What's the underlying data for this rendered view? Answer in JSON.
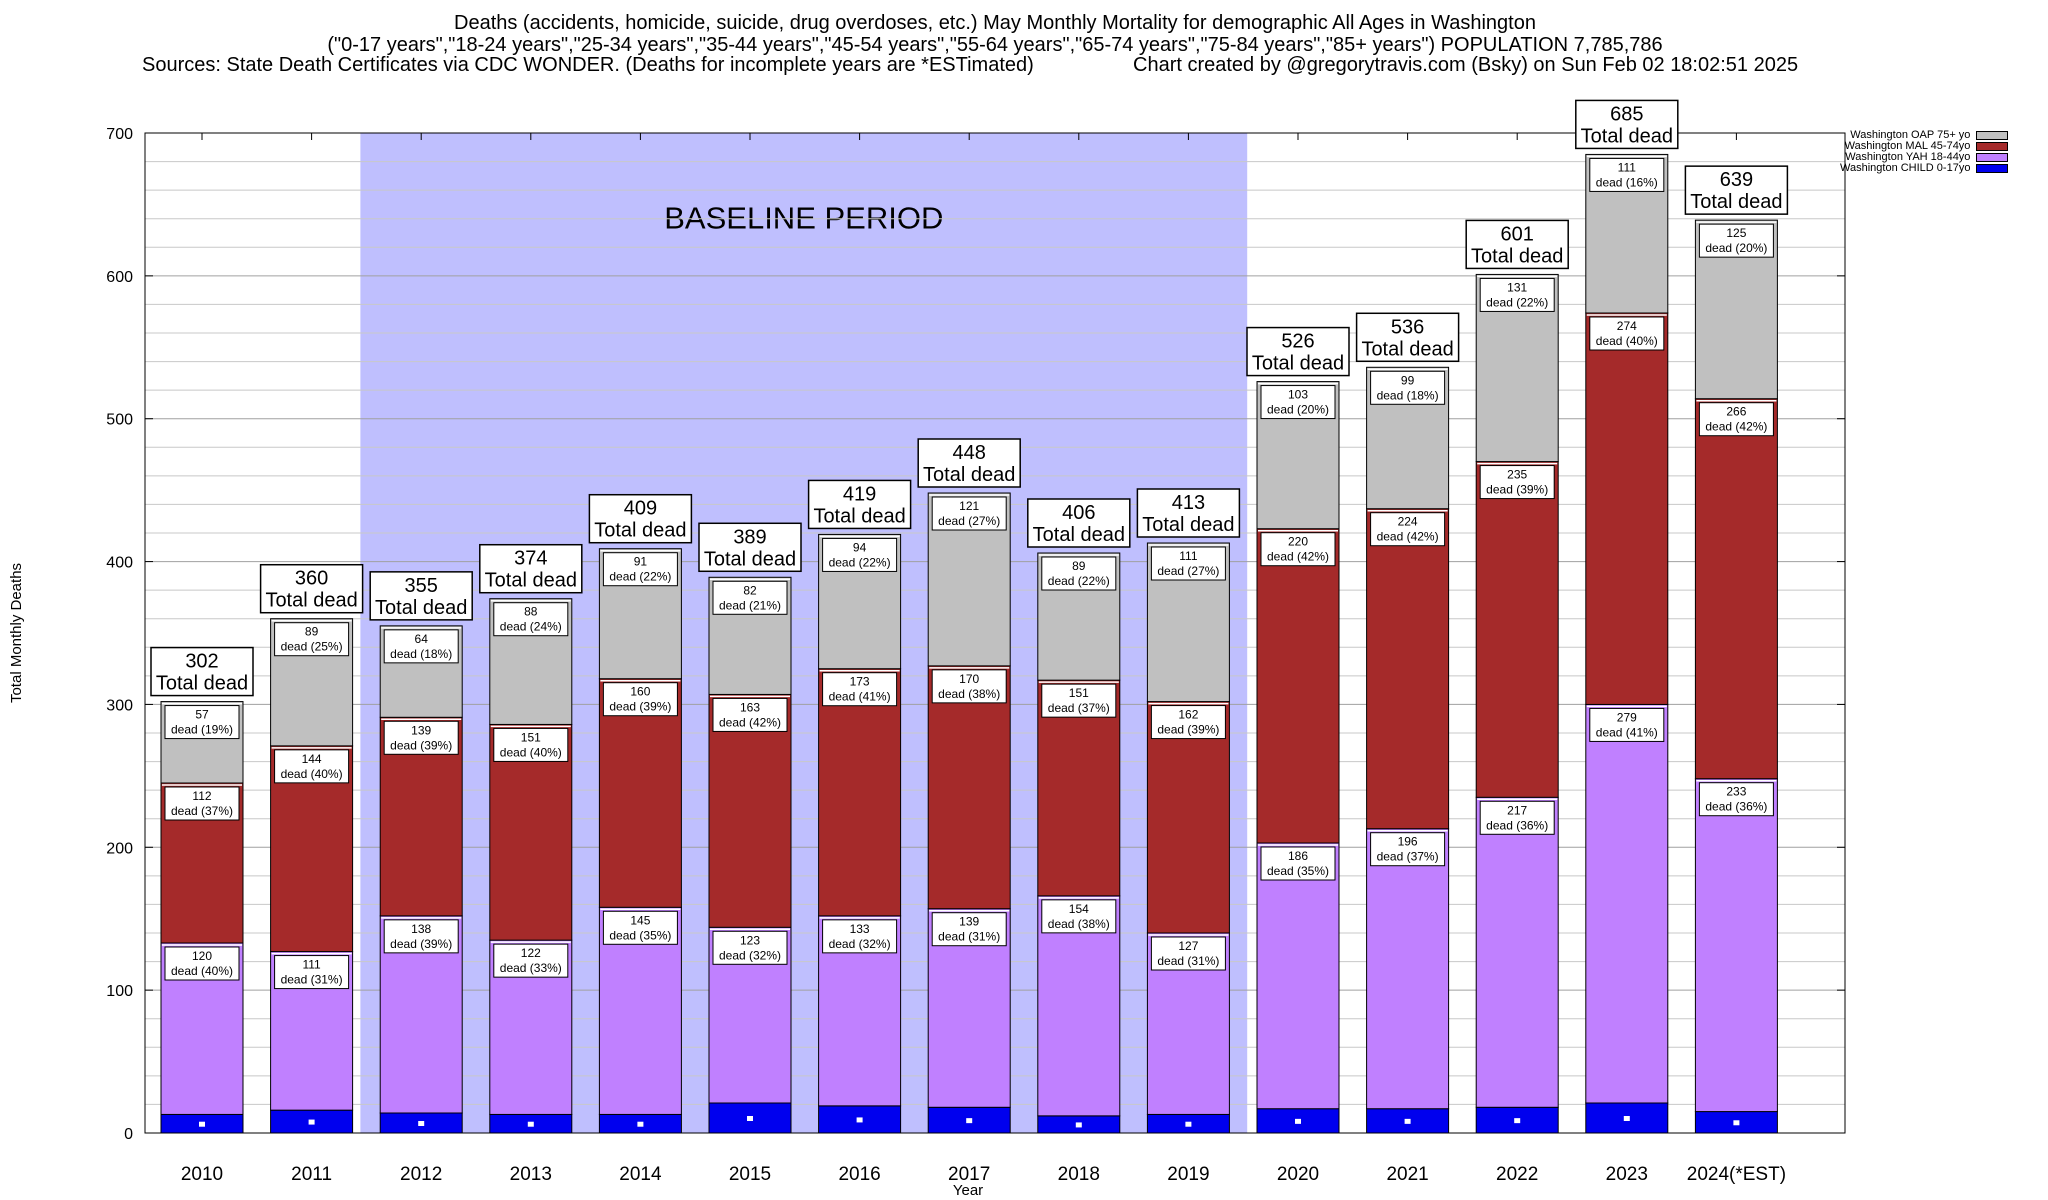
{
  "title": {
    "line1": "Deaths (accidents, homicide, suicide, drug overdoses, etc.) May Monthly Mortality for demographic All Ages in Washington",
    "line2": "(\"0-17 years\",\"18-24 years\",\"25-34 years\",\"35-44 years\",\"45-54 years\",\"55-64 years\",\"65-74 years\",\"75-84 years\",\"85+ years\") POPULATION 7,785,786",
    "sources": "Sources: State Death Certificates via CDC WONDER. (Deaths for incomplete years are *ESTimated)",
    "credit": "Chart created by @gregorytravis.com (Bsky) on Sun Feb 02 18:02:51 2025"
  },
  "chart_data": {
    "type": "bar",
    "stacked": true,
    "xlabel": "Year",
    "ylabel": "Total Monthly Deaths",
    "ylim": [
      0,
      700
    ],
    "yticks": [
      0,
      100,
      200,
      300,
      400,
      500,
      600,
      700
    ],
    "grid": true,
    "legend_position": "top-right",
    "categories": [
      "2010",
      "2011",
      "2012",
      "2013",
      "2014",
      "2015",
      "2016",
      "2017",
      "2018",
      "2019",
      "2020",
      "2021",
      "2022",
      "2023",
      "2024(*EST)"
    ],
    "totals": [
      302,
      360,
      355,
      374,
      409,
      389,
      419,
      448,
      406,
      413,
      526,
      536,
      601,
      685,
      639
    ],
    "total_suffix": "Total dead",
    "segment_label_prefix": "dead",
    "baseline": {
      "label": "BASELINE PERIOD",
      "start": "2012",
      "end": "2019",
      "color": "#bfbffe"
    },
    "series": [
      {
        "name": "Washington CHILD 0-17yo",
        "color": "#0000ee",
        "values": [
          13,
          16,
          14,
          13,
          13,
          21,
          19,
          18,
          12,
          13,
          17,
          17,
          18,
          21,
          15
        ],
        "labeled": false
      },
      {
        "name": "Washington YAH 18-44yo",
        "color": "#c080ff",
        "values": [
          120,
          111,
          138,
          122,
          145,
          123,
          133,
          139,
          154,
          127,
          186,
          196,
          217,
          279,
          233
        ],
        "pcts": [
          "40%",
          "31%",
          "39%",
          "33%",
          "35%",
          "32%",
          "32%",
          "31%",
          "38%",
          "31%",
          "35%",
          "37%",
          "36%",
          "41%",
          "36%"
        ],
        "labeled": true
      },
      {
        "name": "Washington MAL 45-74yo",
        "color": "#a52a2a",
        "values": [
          112,
          144,
          139,
          151,
          160,
          163,
          173,
          170,
          151,
          162,
          220,
          224,
          235,
          274,
          266
        ],
        "pcts": [
          "37%",
          "40%",
          "39%",
          "40%",
          "39%",
          "42%",
          "41%",
          "38%",
          "37%",
          "39%",
          "42%",
          "42%",
          "39%",
          "40%",
          "42%"
        ],
        "labeled": true
      },
      {
        "name": "Washington OAP 75+ yo",
        "color": "#c0c0c0",
        "values": [
          57,
          89,
          64,
          88,
          91,
          82,
          94,
          121,
          89,
          111,
          103,
          99,
          131,
          111,
          125
        ],
        "pcts": [
          "19%",
          "25%",
          "18%",
          "24%",
          "22%",
          "21%",
          "22%",
          "27%",
          "22%",
          "27%",
          "20%",
          "18%",
          "22%",
          "16%",
          "20%"
        ],
        "labeled": true
      }
    ]
  }
}
